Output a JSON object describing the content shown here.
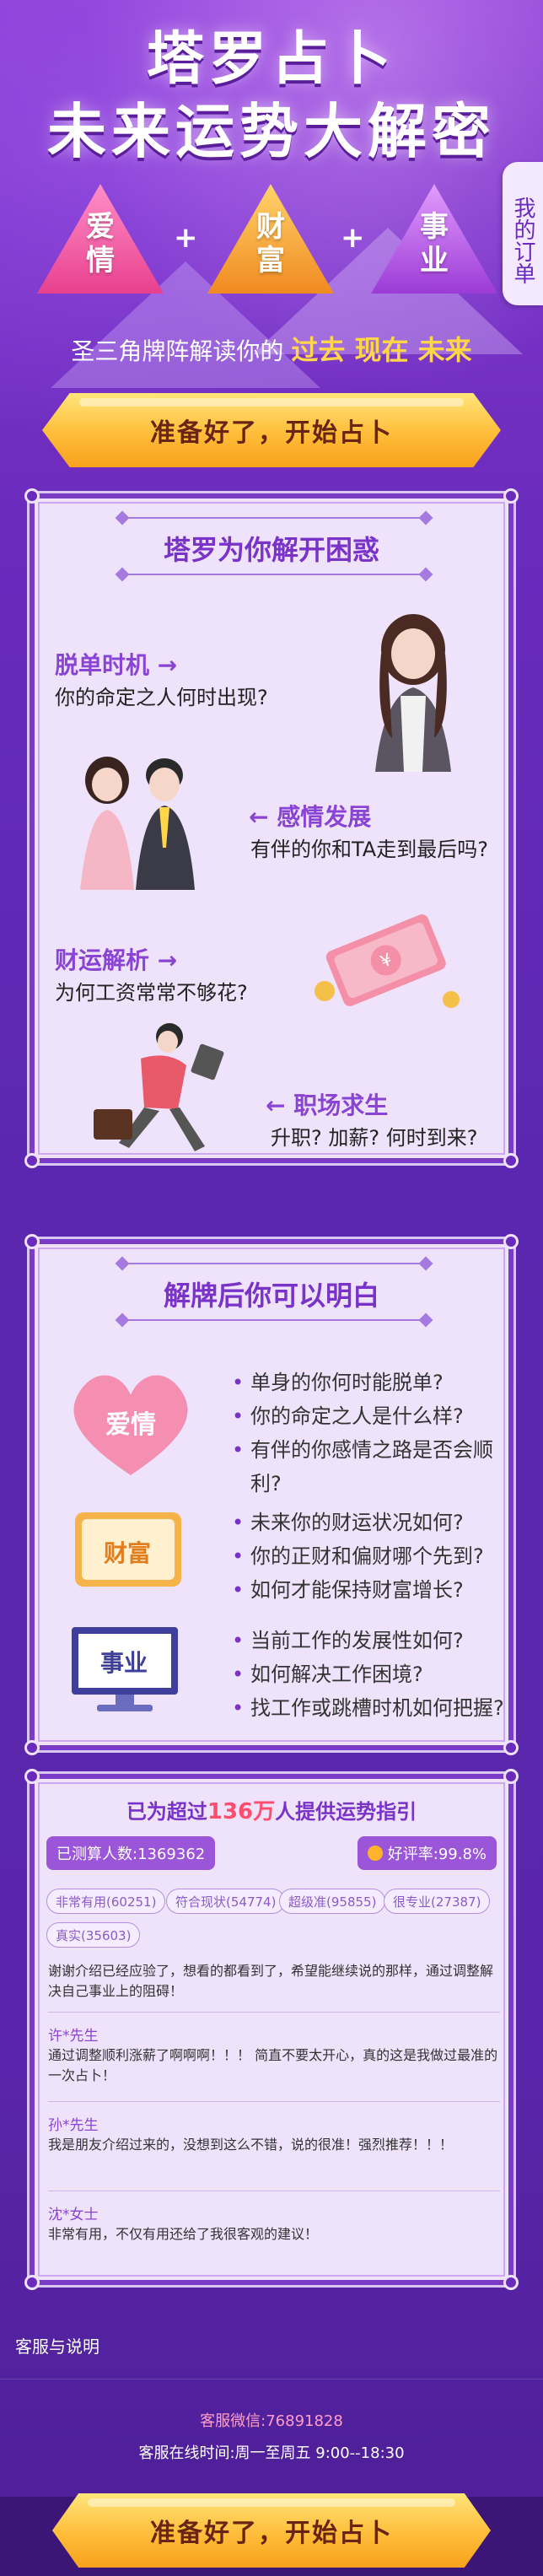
{
  "hero": {
    "title_line1": "塔罗占卜",
    "title_line2": "未来运势大解密",
    "triangles": [
      {
        "c1": "爱",
        "c2": "情"
      },
      {
        "c1": "财",
        "c2": "富"
      },
      {
        "c1": "事",
        "c2": "业"
      }
    ],
    "plus": "+",
    "subtitle_prefix": "圣三角牌阵解读你的",
    "subtitle_highlight": "过去 现在 未来",
    "order_tab": "我的订单"
  },
  "cta_label": "准备好了，开始占卜",
  "card_problems": {
    "title": "塔罗为你解开困惑",
    "items": [
      {
        "head": "脱单时机 →",
        "text": "你的命定之人何时出现?"
      },
      {
        "head": "← 感情发展",
        "text": "有伴的你和TA走到最后吗?"
      },
      {
        "head": "财运解析 →",
        "text": "为何工资常常不够花?"
      },
      {
        "head": "← 职场求生",
        "text": "升职? 加薪? 何时到来?"
      }
    ]
  },
  "card_answers": {
    "title": "解牌后你可以明白",
    "rows": [
      {
        "icon_label": "爱情",
        "icon": "heart-icon",
        "lines": [
          "单身的你何时能脱单?",
          "你的命定之人是什么样?",
          "有伴的你感情之路是否会顺利?"
        ]
      },
      {
        "icon_label": "财富",
        "icon": "wallet-icon",
        "lines": [
          "未来你的财运状况如何?",
          "你的正财和偏财哪个先到?",
          "如何才能保持财富增长?"
        ]
      },
      {
        "icon_label": "事业",
        "icon": "monitor-icon",
        "lines": [
          "当前工作的发展性如何?",
          "如何解决工作困境?",
          "找工作或跳槽时机如何把握?"
        ]
      }
    ]
  },
  "card_reviews": {
    "stat_prefix": "已为超过",
    "stat_number": "136万",
    "stat_suffix": "人提供运势指引",
    "tested_label": "已测算人数:1369362",
    "rating_label": "好评率:99.8%",
    "tags": [
      "非常有用(60251)",
      "符合现状(54774)",
      "超级准(95855)",
      "很专业(27387)",
      "真实(35603)"
    ],
    "reviews": [
      {
        "name": "",
        "text": "谢谢介绍已经应验了，想看的都看到了，希望能继续说的那样，通过调整解决自己事业上的阻碍！"
      },
      {
        "name": "许*先生",
        "text": "通过调整顺利涨薪了啊啊啊！！！ 简直不要太开心，真的这是我做过最准的一次占卜！"
      },
      {
        "name": "孙*先生",
        "text": "我是朋友介绍过来的，没想到这么不错，说的很准！强烈推荐！！！"
      },
      {
        "name": "沈*女士",
        "text": "非常有用，不仅有用还给了我很客观的建议！"
      }
    ]
  },
  "footer": {
    "label": "客服与说明",
    "wechat_label": "客服微信:",
    "wechat_value": "76891828",
    "hours_label": "客服在线时间:",
    "hours_value": "周一至周五 9:00--18:30"
  },
  "colors": {
    "purple": "#7a33c9",
    "gold": "#ffd64a",
    "pink": "#ff4d6d"
  }
}
